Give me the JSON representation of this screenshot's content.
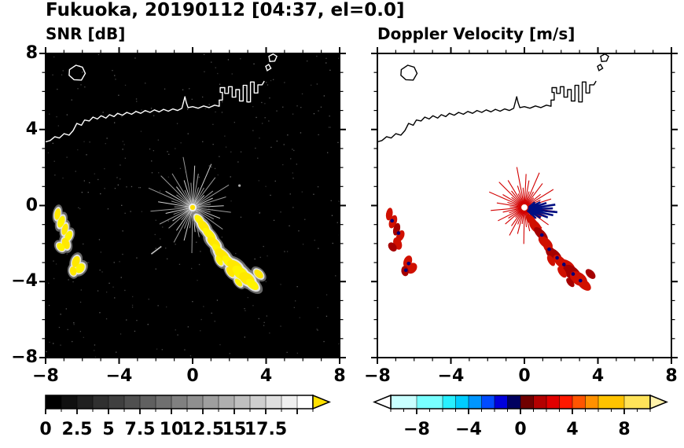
{
  "header": {
    "title": "Fukuoka, 20190112 [04:37, el=0.0]"
  },
  "panels": {
    "snr": {
      "title": "SNR [dB]"
    },
    "doppler": {
      "title": "Doppler Velocity [m/s]"
    }
  },
  "chart_data": [
    {
      "type": "heatmap",
      "title": "SNR [dB]",
      "units": "dB",
      "xlim": [
        -8,
        8
      ],
      "ylim": [
        -8,
        8
      ],
      "xticks": [
        -8,
        -4,
        0,
        4,
        8
      ],
      "yticks": [
        8,
        4,
        0,
        -4,
        -8
      ],
      "xtick_labels": [
        "−8",
        "−4",
        "0",
        "4",
        "8"
      ],
      "ytick_labels": [
        "8",
        "4",
        "0",
        "−4",
        "−8"
      ],
      "background": "#000000",
      "coast_color": "#ffffff",
      "description": "PPI radar SNR field at elevation 0.0 deg; radar at origin with gray ground-clutter spokes; high-SNR (about 15-18 dB, yellow) precipitation band from (0.3,-0.8) to (3.3,-4.2) and echo arcs near the west edge from (-7.4,-0.4) to (-6.1,-3.4); Hakata Bay coastline across the top of the domain.",
      "colorbar": {
        "range": [
          0,
          21.25
        ],
        "step": 1.25,
        "label_values": [
          0,
          2.5,
          5,
          7.5,
          10,
          12.5,
          15,
          17.5
        ],
        "labels": [
          "0",
          "2.5",
          "5",
          "7.5",
          "10",
          "12.5",
          "15",
          "17.5"
        ],
        "cmap": "grayscale-black-to-white",
        "over_arrow_color": "#ffe100"
      },
      "features": {
        "spoke_color": "#9a9a9a",
        "echo_core_color": "#ffe800",
        "echo_core_color2": "#fff400",
        "echo_mid_color": "#e8e8e8",
        "echo_halo_color": "#808080",
        "center_dot_color": "#ffe100",
        "geometry": {
          "radar_center": [
            0,
            -0.1
          ],
          "spokes": [
            [
              3,
              1.7
            ],
            [
              10,
              1.0
            ],
            [
              17,
              1.9
            ],
            [
              24,
              1.2
            ],
            [
              31,
              2.3
            ],
            [
              38,
              1.4
            ],
            [
              45,
              0.9
            ],
            [
              52,
              2.0
            ],
            [
              59,
              1.2
            ],
            [
              66,
              2.5
            ],
            [
              73,
              1.1
            ],
            [
              80,
              1.8
            ],
            [
              87,
              2.2
            ],
            [
              94,
              1.3
            ],
            [
              101,
              2.7
            ],
            [
              108,
              1.5
            ],
            [
              115,
              1.0
            ],
            [
              122,
              2.1
            ],
            [
              129,
              1.4
            ],
            [
              136,
              2.4
            ],
            [
              143,
              1.1
            ],
            [
              150,
              1.7
            ],
            [
              157,
              2.6
            ],
            [
              164,
              1.2
            ],
            [
              171,
              1.9
            ],
            [
              178,
              1.0
            ],
            [
              185,
              2.3
            ],
            [
              192,
              1.5
            ],
            [
              199,
              1.1
            ],
            [
              206,
              2.0
            ],
            [
              213,
              1.3
            ],
            [
              220,
              1.7
            ],
            [
              227,
              0.9
            ],
            [
              234,
              1.5
            ],
            [
              241,
              2.1
            ],
            [
              248,
              1.2
            ],
            [
              255,
              1.8
            ],
            [
              262,
              1.1
            ],
            [
              269,
              2.4
            ],
            [
              276,
              1.3
            ],
            [
              283,
              1.6
            ],
            [
              290,
              1.0
            ],
            [
              297,
              2.2
            ],
            [
              304,
              1.4
            ],
            [
              311,
              1.8
            ],
            [
              318,
              1.1
            ],
            [
              325,
              2.0
            ],
            [
              332,
              1.3
            ],
            [
              339,
              1.6
            ],
            [
              346,
              1.0
            ],
            [
              353,
              2.1
            ]
          ],
          "coastline": [
            [
              -8,
              3.35
            ],
            [
              -7.75,
              3.42
            ],
            [
              -7.5,
              3.62
            ],
            [
              -7.25,
              3.55
            ],
            [
              -7.0,
              3.78
            ],
            [
              -6.72,
              3.7
            ],
            [
              -6.5,
              3.95
            ],
            [
              -6.3,
              4.32
            ],
            [
              -6.05,
              4.22
            ],
            [
              -5.88,
              4.5
            ],
            [
              -5.62,
              4.45
            ],
            [
              -5.42,
              4.65
            ],
            [
              -5.18,
              4.55
            ],
            [
              -4.98,
              4.72
            ],
            [
              -4.72,
              4.6
            ],
            [
              -4.52,
              4.78
            ],
            [
              -4.28,
              4.68
            ],
            [
              -4.08,
              4.85
            ],
            [
              -3.82,
              4.75
            ],
            [
              -3.58,
              4.9
            ],
            [
              -3.32,
              4.8
            ],
            [
              -3.08,
              4.95
            ],
            [
              -2.82,
              4.85
            ],
            [
              -2.58,
              5.0
            ],
            [
              -2.32,
              4.9
            ],
            [
              -2.08,
              5.03
            ],
            [
              -1.82,
              4.93
            ],
            [
              -1.58,
              5.06
            ],
            [
              -1.32,
              4.96
            ],
            [
              -1.08,
              5.08
            ],
            [
              -0.82,
              5.0
            ],
            [
              -0.58,
              5.12
            ],
            [
              -0.5,
              5.42
            ],
            [
              -0.42,
              5.72
            ],
            [
              -0.34,
              5.4
            ],
            [
              -0.25,
              5.15
            ],
            [
              0.0,
              5.2
            ],
            [
              0.3,
              5.12
            ],
            [
              0.6,
              5.24
            ],
            [
              0.9,
              5.15
            ],
            [
              1.2,
              5.28
            ],
            [
              1.45,
              5.22
            ],
            [
              1.45,
              5.55
            ],
            [
              1.62,
              5.55
            ],
            [
              1.62,
              5.95
            ],
            [
              1.5,
              5.95
            ],
            [
              1.5,
              6.2
            ],
            [
              1.75,
              6.2
            ],
            [
              1.75,
              5.9
            ],
            [
              1.95,
              5.9
            ],
            [
              1.95,
              6.25
            ],
            [
              2.15,
              6.25
            ],
            [
              2.15,
              5.7
            ],
            [
              2.35,
              5.7
            ],
            [
              2.35,
              6.1
            ],
            [
              2.55,
              6.1
            ],
            [
              2.55,
              5.5
            ],
            [
              2.75,
              5.5
            ],
            [
              2.75,
              6.32
            ],
            [
              2.95,
              6.32
            ],
            [
              2.95,
              5.45
            ],
            [
              3.15,
              5.45
            ],
            [
              3.15,
              6.5
            ],
            [
              3.35,
              6.5
            ],
            [
              3.35,
              5.92
            ],
            [
              3.55,
              5.92
            ],
            [
              3.55,
              6.35
            ],
            [
              3.78,
              6.35
            ],
            [
              3.9,
              6.55
            ]
          ],
          "islands": [
            [
              [
                -6.7,
                7.15
              ],
              [
                -6.35,
                7.38
              ],
              [
                -6.0,
                7.28
              ],
              [
                -5.84,
                6.95
              ],
              [
                -6.05,
                6.6
              ],
              [
                -6.45,
                6.62
              ],
              [
                -6.72,
                6.85
              ]
            ],
            [
              [
                4.15,
                7.85
              ],
              [
                4.38,
                7.97
              ],
              [
                4.58,
                7.85
              ],
              [
                4.47,
                7.6
              ],
              [
                4.2,
                7.58
              ]
            ],
            [
              [
                3.98,
                7.32
              ],
              [
                4.14,
                7.42
              ],
              [
                4.26,
                7.22
              ],
              [
                4.06,
                7.1
              ]
            ]
          ],
          "echoes": {
            "band": [
              [
                0.35,
                -0.75,
                0.18,
                0.3,
                -40
              ],
              [
                0.6,
                -1.1,
                0.22,
                0.38,
                -40
              ],
              [
                0.9,
                -1.5,
                0.2,
                0.42,
                -45
              ],
              [
                1.15,
                -1.95,
                0.22,
                0.4,
                -50
              ],
              [
                1.35,
                -2.3,
                0.18,
                0.35,
                -45
              ],
              [
                1.6,
                -2.6,
                0.25,
                0.45,
                -50
              ],
              [
                1.95,
                -2.95,
                0.22,
                0.4,
                -45
              ],
              [
                2.3,
                -3.2,
                0.28,
                0.45,
                -55
              ],
              [
                2.6,
                -3.55,
                0.3,
                0.5,
                -50
              ],
              [
                2.95,
                -3.85,
                0.3,
                0.45,
                -55
              ],
              [
                3.25,
                -4.15,
                0.22,
                0.38,
                -50
              ],
              [
                3.6,
                -3.6,
                0.18,
                0.28,
                -45
              ],
              [
                1.45,
                -2.9,
                0.15,
                0.28,
                -30
              ],
              [
                2.05,
                -3.5,
                0.16,
                0.3,
                -35
              ],
              [
                2.5,
                -4.05,
                0.14,
                0.25,
                -40
              ]
            ],
            "west": [
              [
                -7.35,
                -0.45,
                0.16,
                0.3,
                10
              ],
              [
                -7.15,
                -0.85,
                0.18,
                0.32,
                20
              ],
              [
                -6.95,
                -1.25,
                0.16,
                0.3,
                15
              ],
              [
                -6.75,
                -1.6,
                0.18,
                0.28,
                25
              ],
              [
                -6.9,
                -2.0,
                0.2,
                0.3,
                -20
              ],
              [
                -7.18,
                -2.18,
                0.18,
                0.24,
                -40
              ],
              [
                -6.35,
                -2.95,
                0.2,
                0.3,
                20
              ],
              [
                -6.12,
                -3.3,
                0.22,
                0.28,
                40
              ],
              [
                -6.5,
                -3.45,
                0.18,
                0.24,
                -10
              ]
            ]
          },
          "streaks": [
            [
              -2.25,
              -2.55,
              -1.7,
              -2.15
            ]
          ],
          "dots": [
            [
              2.55,
              1.05
            ]
          ],
          "doppler_specks": [
            [
              0.95,
              -1.55
            ],
            [
              1.35,
              -2.3
            ],
            [
              1.78,
              -2.75
            ],
            [
              2.15,
              -3.1
            ],
            [
              2.65,
              -3.6
            ],
            [
              3.05,
              -3.95
            ],
            [
              -7.2,
              -0.8
            ],
            [
              -6.85,
              -1.45
            ],
            [
              -6.3,
              -3.05
            ],
            [
              -6.45,
              -3.4
            ]
          ]
        }
      }
    },
    {
      "type": "heatmap",
      "title": "Doppler Velocity [m/s]",
      "units": "m/s",
      "xlim": [
        -8,
        8
      ],
      "ylim": [
        -8,
        8
      ],
      "xticks": [
        -8,
        -4,
        0,
        4,
        8
      ],
      "yticks": [
        8,
        4,
        0,
        -4,
        -8
      ],
      "xtick_labels": [
        "−8",
        "−4",
        "0",
        "4",
        "8"
      ],
      "ytick_labels": [
        "8",
        "4",
        "0",
        "−4",
        "−8"
      ],
      "background": "#ffffff",
      "coast_color": "#000000",
      "description": "Doppler radial velocity for the same echoes; outbound velocities (red, about +1 to +6 m/s) dominate the clutter spokes and echo band; inbound patches (dark blue, about -4 to -8 m/s) lie just east of the radar and are embedded in the band and in the western echo arcs.",
      "colorbar": {
        "range": [
          -10,
          10
        ],
        "label_values": [
          -8,
          -4,
          0,
          4,
          8
        ],
        "labels": [
          "−8",
          "−4",
          "0",
          "4",
          "8"
        ],
        "segments": [
          [
            -10,
            -8,
            "#c8ffff"
          ],
          [
            -8,
            -6,
            "#78ffff"
          ],
          [
            -6,
            -5,
            "#28f0ff"
          ],
          [
            -5,
            -4,
            "#00cdff"
          ],
          [
            -4,
            -3,
            "#0096ff"
          ],
          [
            -3,
            -2,
            "#004bff"
          ],
          [
            -2,
            -1,
            "#0000dc"
          ],
          [
            -1,
            0,
            "#000060"
          ],
          [
            0,
            1,
            "#700000"
          ],
          [
            1,
            2,
            "#b40000"
          ],
          [
            2,
            3,
            "#e10000"
          ],
          [
            3,
            4,
            "#ff1900"
          ],
          [
            4,
            5,
            "#ff5500"
          ],
          [
            5,
            6,
            "#ff9100"
          ],
          [
            6,
            8,
            "#ffc300"
          ],
          [
            8,
            10,
            "#ffe359"
          ]
        ],
        "under_arrow_color": "#ffffff",
        "over_arrow_color": "#fff2aa"
      },
      "features": {
        "spoke_color": "#d20000",
        "inbound_color": "#000f82",
        "echo_color": "#d01000",
        "speck_color": "#000078",
        "blue_spokes": [
          [
            -30,
            0.9
          ],
          [
            -20,
            1.25
          ],
          [
            -12,
            1.5
          ],
          [
            -5,
            1.7
          ],
          [
            2,
            1.45
          ],
          [
            9,
            1.6
          ],
          [
            17,
            1.15
          ],
          [
            26,
            0.85
          ],
          [
            -42,
            0.7
          ],
          [
            38,
            0.6
          ]
        ]
      }
    }
  ]
}
